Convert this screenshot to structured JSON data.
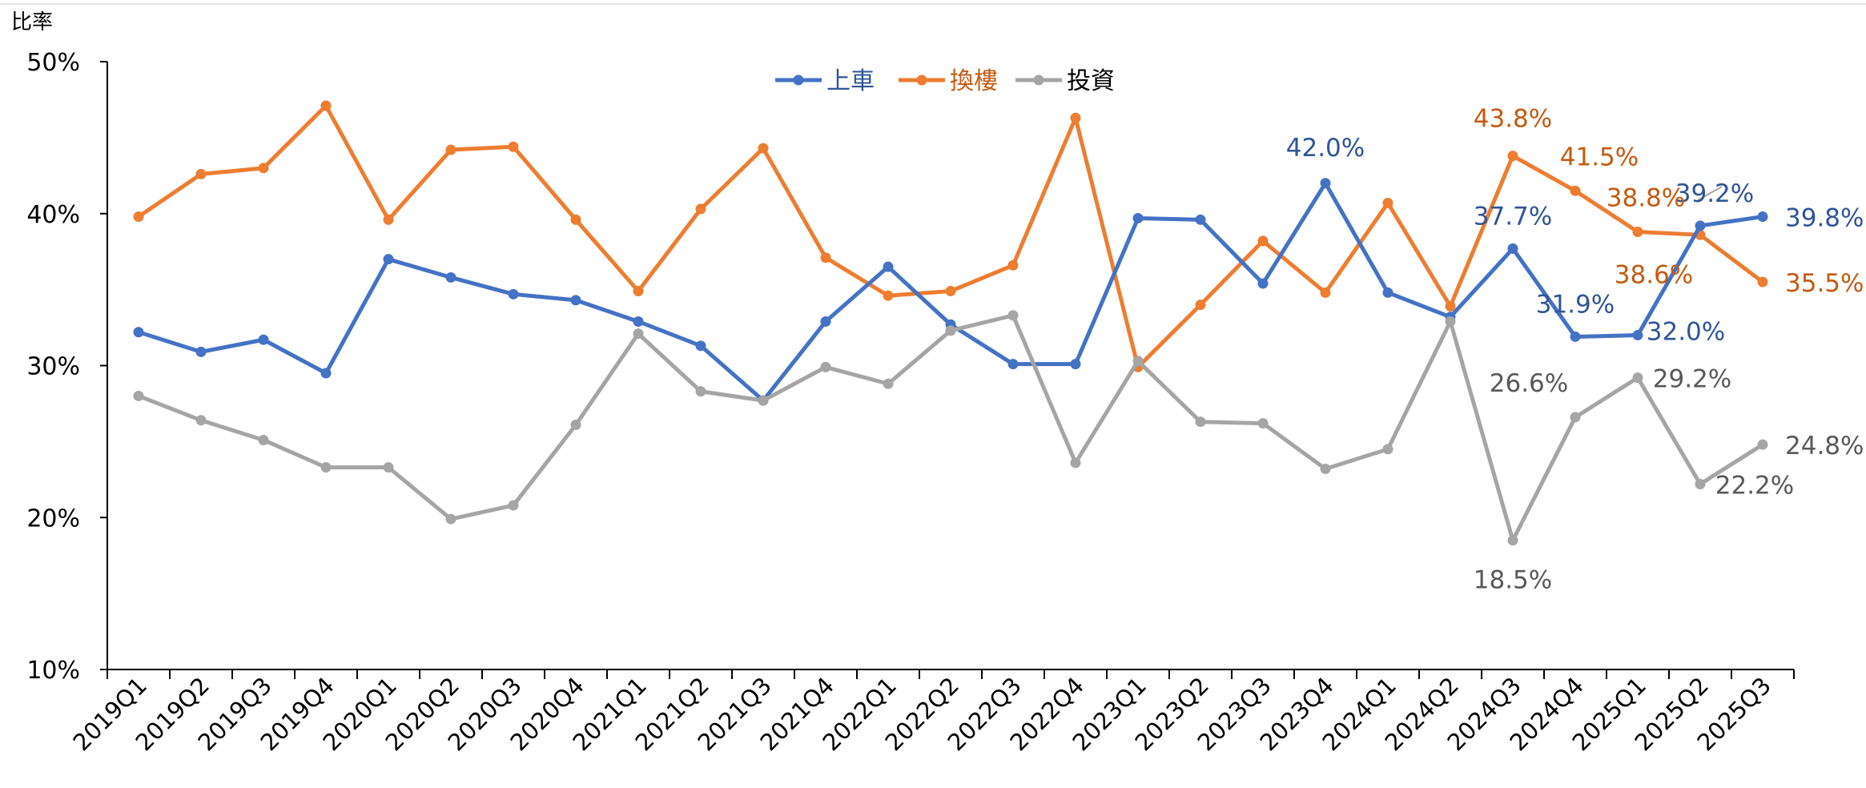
{
  "chart_data": {
    "type": "line",
    "title": "",
    "ylabel": "比率",
    "xlabel": "",
    "ylim": [
      10,
      50
    ],
    "yticks": [
      10,
      20,
      30,
      40,
      50
    ],
    "ytick_labels": [
      "10%",
      "20%",
      "30%",
      "40%",
      "50%"
    ],
    "grid": false,
    "legend_position": "top-center",
    "categories": [
      "2019Q1",
      "2019Q2",
      "2019Q3",
      "2019Q4",
      "2020Q1",
      "2020Q2",
      "2020Q3",
      "2020Q4",
      "2021Q1",
      "2021Q2",
      "2021Q3",
      "2021Q4",
      "2022Q1",
      "2022Q2",
      "2022Q3",
      "2022Q4",
      "2023Q1",
      "2023Q2",
      "2023Q3",
      "2023Q4",
      "2024Q1",
      "2024Q2",
      "2024Q3",
      "2024Q4",
      "2025Q1",
      "2025Q2",
      "2025Q3"
    ],
    "series": [
      {
        "name": "上車",
        "color": "#4472c4",
        "values": [
          32.2,
          30.9,
          31.7,
          29.5,
          37.0,
          35.8,
          34.7,
          34.3,
          32.9,
          31.3,
          27.7,
          32.9,
          36.5,
          32.7,
          30.1,
          30.1,
          39.7,
          39.6,
          35.4,
          42.0,
          34.8,
          33.2,
          37.7,
          31.9,
          32.0,
          39.2,
          39.8
        ],
        "labels": [
          {
            "index": 19,
            "text": "42.0%"
          },
          {
            "index": 22,
            "text": "37.7%"
          },
          {
            "index": 23,
            "text": "31.9%"
          },
          {
            "index": 24,
            "text": "32.0%"
          },
          {
            "index": 25,
            "text": "39.2%"
          },
          {
            "index": 26,
            "text": "39.8%"
          }
        ]
      },
      {
        "name": "換樓",
        "color": "#ed7d31",
        "values": [
          39.8,
          42.6,
          43.0,
          47.1,
          39.6,
          44.2,
          44.4,
          39.6,
          34.9,
          40.3,
          44.3,
          37.1,
          34.6,
          34.9,
          36.6,
          46.3,
          29.9,
          34.0,
          38.2,
          34.8,
          40.7,
          33.9,
          43.8,
          41.5,
          38.8,
          38.6,
          35.5
        ],
        "labels": [
          {
            "index": 22,
            "text": "43.8%"
          },
          {
            "index": 23,
            "text": "41.5%"
          },
          {
            "index": 24,
            "text": "38.8%"
          },
          {
            "index": 25,
            "text": "38.6%"
          },
          {
            "index": 26,
            "text": "35.5%"
          }
        ]
      },
      {
        "name": "投資",
        "color": "#a5a5a5",
        "values": [
          28.0,
          26.4,
          25.1,
          23.3,
          23.3,
          19.9,
          20.8,
          26.1,
          32.1,
          28.3,
          27.7,
          29.9,
          28.8,
          32.3,
          33.3,
          23.6,
          30.3,
          26.3,
          26.2,
          23.2,
          24.5,
          32.9,
          18.5,
          26.6,
          29.2,
          22.2,
          24.8
        ],
        "labels": [
          {
            "index": 22,
            "text": "18.5%"
          },
          {
            "index": 23,
            "text": "26.6%"
          },
          {
            "index": 24,
            "text": "29.2%"
          },
          {
            "index": 25,
            "text": "22.2%"
          },
          {
            "index": 26,
            "text": "24.8%"
          }
        ]
      }
    ]
  }
}
